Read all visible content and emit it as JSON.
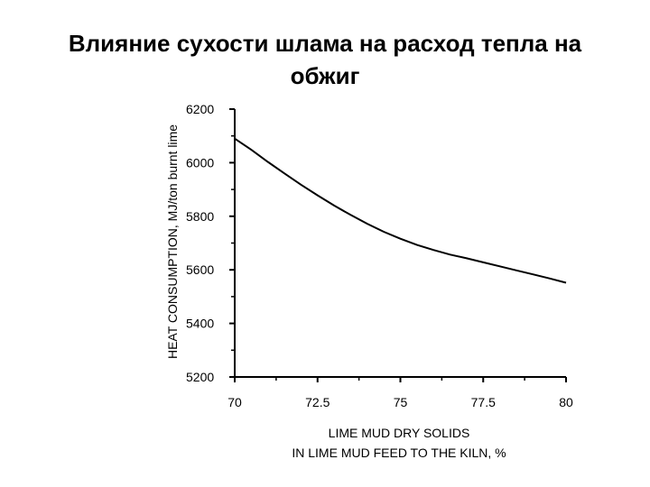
{
  "title_line1": "Влияние сухости шлама на расход тепла на",
  "title_line2": "обжиг",
  "chart_data": {
    "type": "line",
    "title": "Влияние сухости шлама на расход тепла на обжиг",
    "xlabel_line1": "LIME MUD DRY SOLIDS",
    "xlabel_line2": "IN LIME MUD FEED TO THE KILN, %",
    "ylabel": "HEAT CONSUMPTION, MJ/ton burnt lime",
    "xlim": [
      70,
      80
    ],
    "ylim": [
      5200,
      6200
    ],
    "xticks": [
      70,
      72.5,
      75,
      77.5,
      80
    ],
    "xtick_labels": [
      "70",
      "72.5",
      "75",
      "77.5",
      "80"
    ],
    "yticks": [
      5200,
      5400,
      5600,
      5800,
      6000,
      6200
    ],
    "ytick_labels": [
      "5200",
      "5400",
      "5600",
      "5800",
      "6000",
      "6200"
    ],
    "grid": false,
    "series": [
      {
        "x": [
          70,
          70.5,
          71,
          71.5,
          72,
          72.5,
          73,
          73.5,
          74,
          74.5,
          75,
          75.5,
          76,
          76.5,
          77,
          77.5,
          78,
          78.5,
          79,
          79.5,
          80
        ],
        "y": [
          6090,
          6048,
          6003,
          5960,
          5918,
          5878,
          5840,
          5805,
          5772,
          5742,
          5716,
          5693,
          5674,
          5657,
          5643,
          5628,
          5613,
          5598,
          5583,
          5568,
          5552
        ]
      }
    ]
  }
}
